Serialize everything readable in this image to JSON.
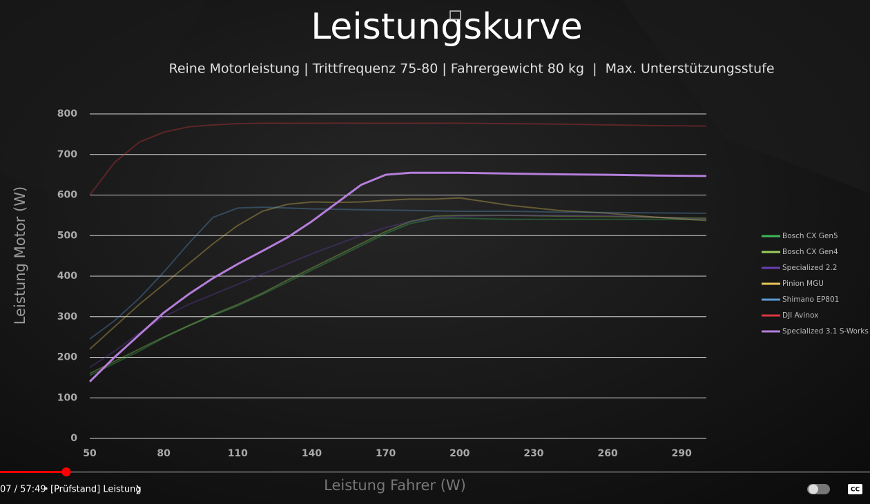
{
  "chart_data": {
    "type": "line",
    "title": "Leistungskurve",
    "subtitle": "Reine Motorleistung | Trittfrequenz 75-80 | Fahrergewicht 80 kg  |  Max. Unterstützungsstufe",
    "x_label": "Leistung Fahrer (W)",
    "y_label": "Leistung Motor (W)",
    "x": [
      50,
      60,
      70,
      80,
      90,
      100,
      110,
      120,
      130,
      140,
      150,
      160,
      170,
      180,
      190,
      200,
      220,
      240,
      260,
      280,
      300
    ],
    "xlim": [
      50,
      300
    ],
    "xticks": [
      50,
      80,
      110,
      140,
      170,
      200,
      230,
      260,
      290
    ],
    "ylim": [
      0,
      800
    ],
    "yticks": [
      0,
      100,
      200,
      300,
      400,
      500,
      600,
      700,
      800
    ],
    "grid": true,
    "legend": "right",
    "series": [
      {
        "name": "Bosch CX Gen5",
        "color": "#3cb85a",
        "dimmed": true,
        "values": [
          155,
          185,
          215,
          248,
          277,
          303,
          327,
          355,
          385,
          415,
          445,
          475,
          505,
          530,
          542,
          543,
          540,
          540,
          540,
          540,
          540
        ]
      },
      {
        "name": "Bosch CX Gen4",
        "color": "#9acd5a",
        "dimmed": true,
        "values": [
          160,
          190,
          220,
          250,
          278,
          305,
          330,
          358,
          390,
          420,
          450,
          480,
          510,
          535,
          548,
          550,
          550,
          548,
          547,
          545,
          543
        ]
      },
      {
        "name": "Specialized 2.2",
        "color": "#6a3fb0",
        "dimmed": true,
        "values": [
          175,
          215,
          260,
          300,
          330,
          355,
          380,
          405,
          430,
          455,
          478,
          500,
          520,
          535,
          543,
          548,
          550,
          550,
          550,
          545,
          540
        ]
      },
      {
        "name": "Pinion MGU",
        "color": "#e6c85a",
        "dimmed": true,
        "values": [
          220,
          275,
          330,
          380,
          430,
          480,
          525,
          560,
          577,
          583,
          582,
          583,
          587,
          590,
          590,
          593,
          575,
          562,
          555,
          545,
          537
        ]
      },
      {
        "name": "Shimano EP801",
        "color": "#5b9bd5",
        "dimmed": true,
        "values": [
          245,
          290,
          345,
          410,
          480,
          545,
          568,
          570,
          568,
          566,
          565,
          564,
          563,
          562,
          561,
          560,
          560,
          558,
          557,
          556,
          555
        ]
      },
      {
        "name": "DJI Avinox",
        "color": "#d9363e",
        "dimmed": true,
        "values": [
          600,
          680,
          730,
          755,
          768,
          773,
          776,
          777,
          777,
          777,
          777,
          777,
          777,
          777,
          777,
          777,
          776,
          775,
          773,
          771,
          770
        ]
      },
      {
        "name": "Specialized 3.1 S-Works",
        "color": "#b57edc",
        "dimmed": false,
        "values": [
          140,
          200,
          255,
          310,
          355,
          395,
          430,
          462,
          495,
          535,
          580,
          625,
          650,
          655,
          655,
          655,
          653,
          651,
          650,
          648,
          647
        ]
      }
    ]
  },
  "player": {
    "time": "07 / 57:49",
    "chapter": "[Prüfstand] Leistung"
  }
}
